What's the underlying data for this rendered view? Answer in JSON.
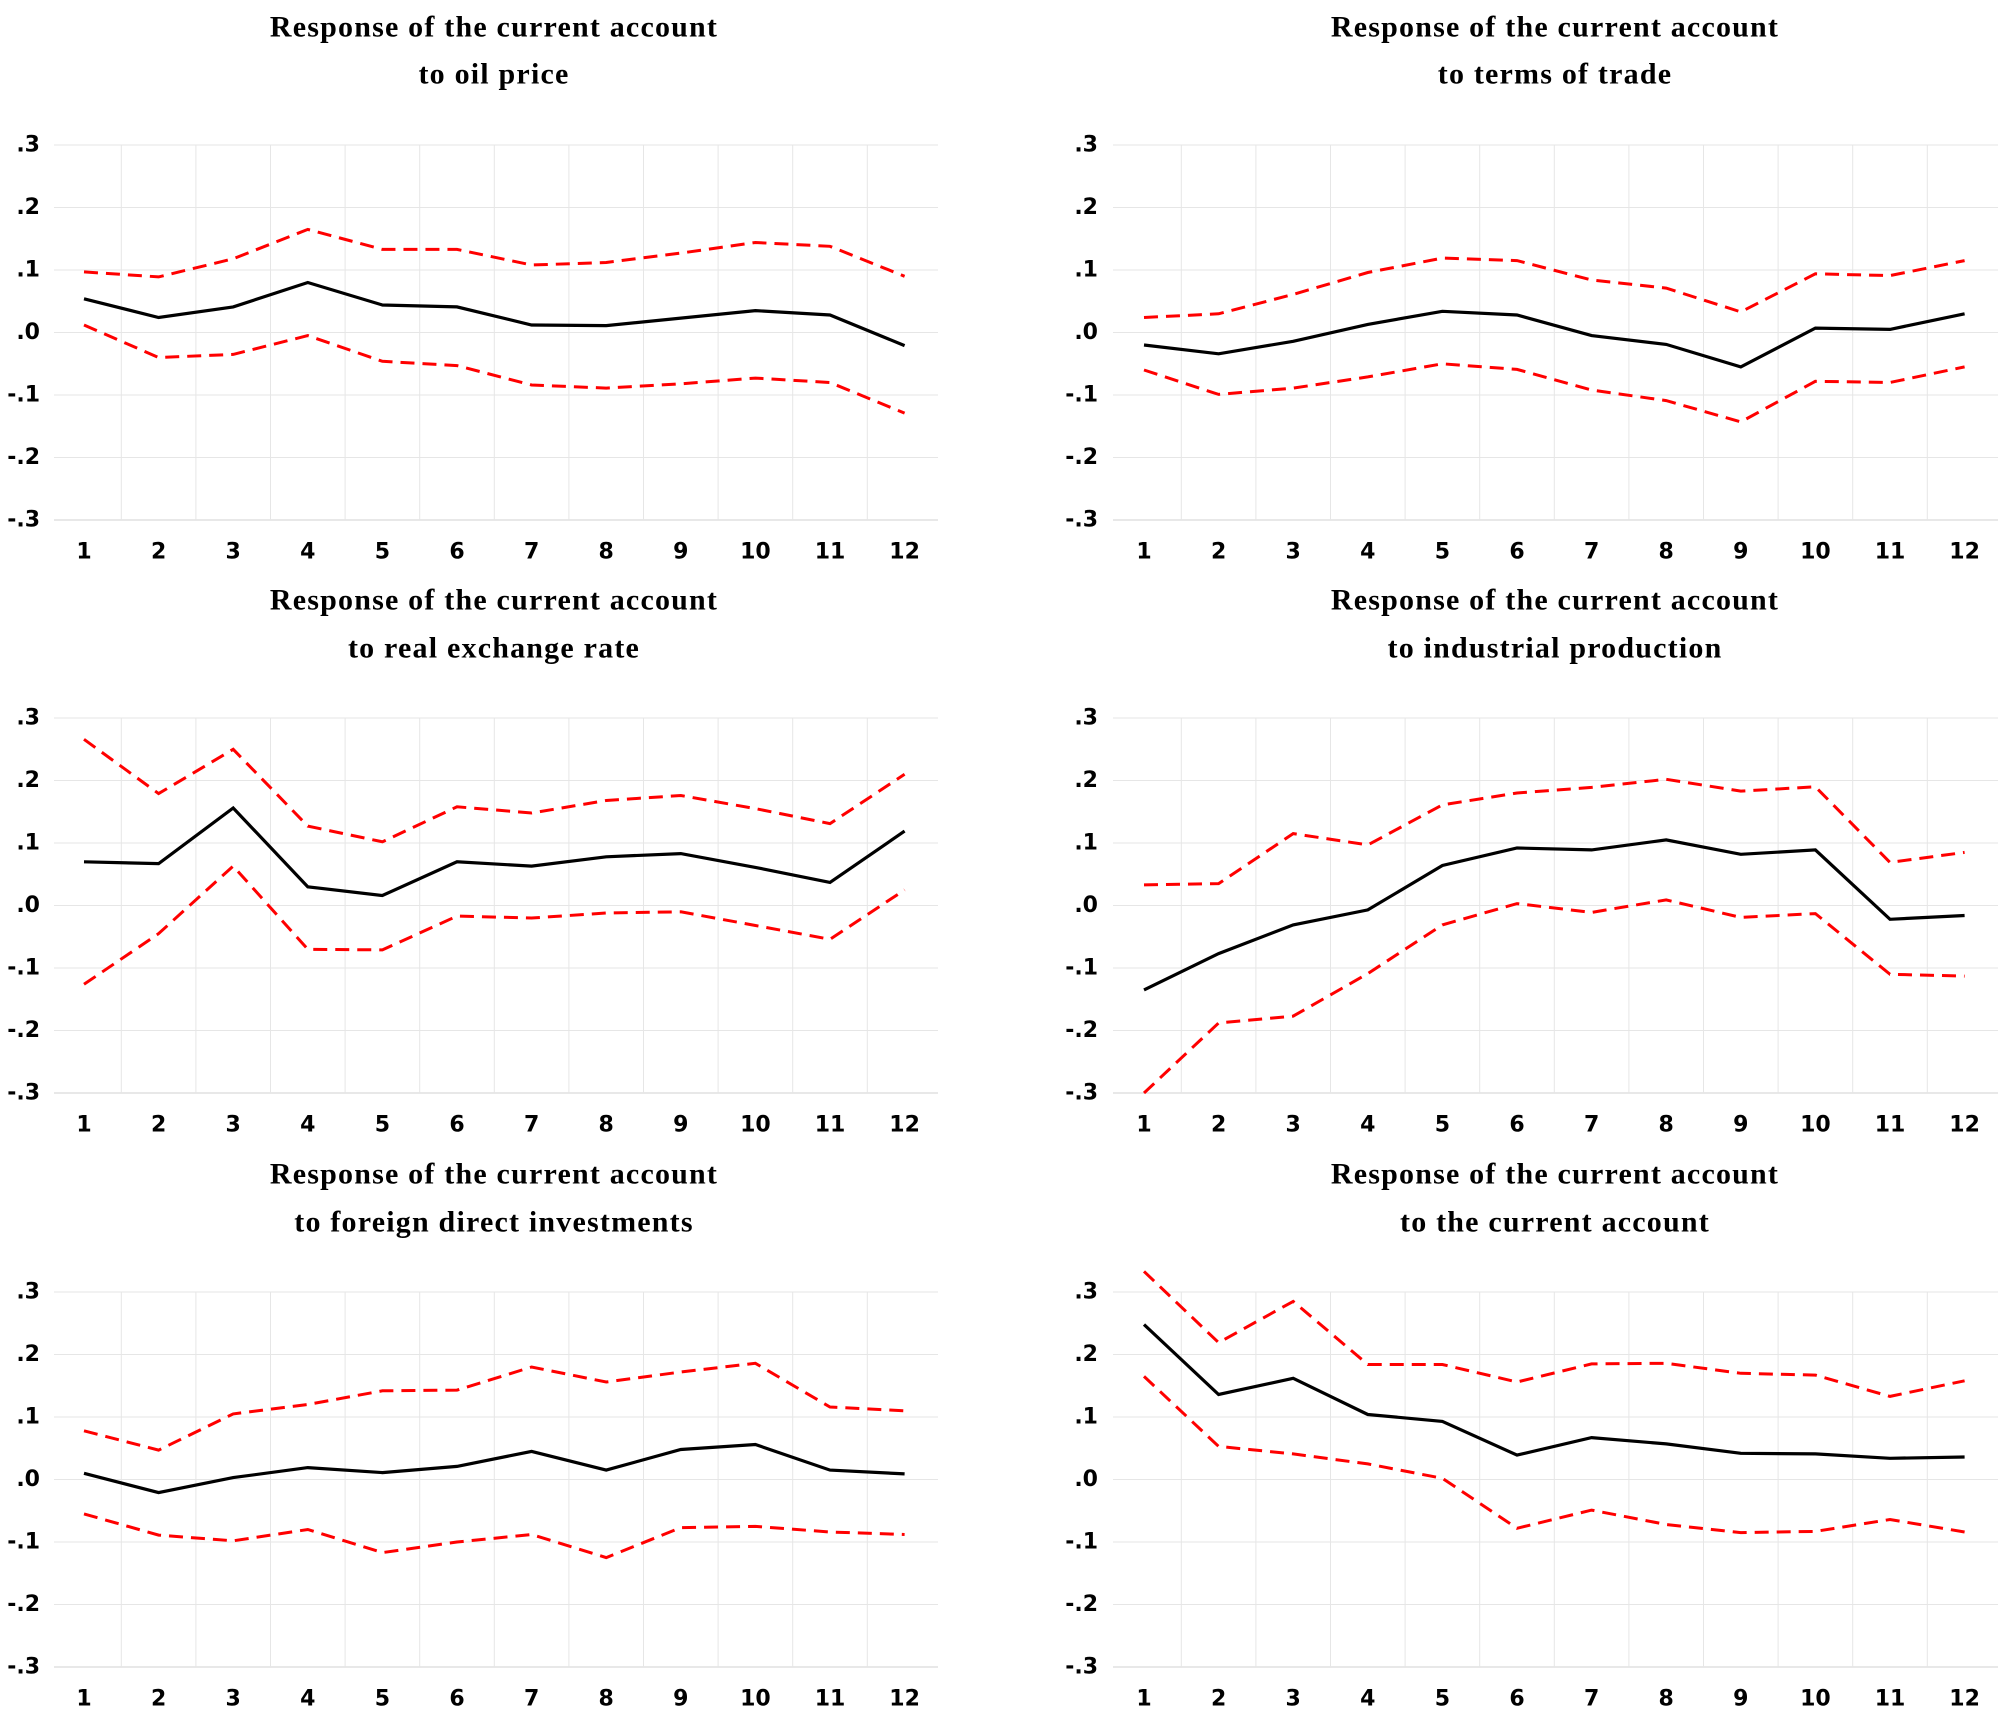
{
  "figure": {
    "colors": {
      "response": "#000000",
      "confidence_band": "#ff0000",
      "grid": "#e6e6e6"
    },
    "legend": "none"
  },
  "chart_data": [
    {
      "type": "line",
      "title": [
        "Response of the current account",
        "to oil price"
      ],
      "x": [
        1,
        2,
        3,
        4,
        5,
        6,
        7,
        8,
        9,
        10,
        11,
        12
      ],
      "xtick_labels": [
        "1",
        "2",
        "3",
        "4",
        "5",
        "6",
        "7",
        "8",
        "9",
        "10",
        "11",
        "12"
      ],
      "ylim": [
        -0.3,
        0.3
      ],
      "ytick_labels": [
        ".3",
        ".2",
        ".1",
        ".0",
        "-.1",
        "-.2",
        "-.3"
      ],
      "series": [
        {
          "name": "response",
          "style": "solid",
          "color": "#000000",
          "values": [
            0.054,
            0.024,
            0.041,
            0.08,
            0.044,
            0.041,
            0.012,
            0.011,
            0.023,
            0.035,
            0.028,
            -0.021
          ]
        },
        {
          "name": "upper_bound",
          "style": "dashed",
          "color": "#ff0000",
          "values": [
            0.097,
            0.089,
            0.118,
            0.165,
            0.133,
            0.133,
            0.108,
            0.112,
            0.127,
            0.144,
            0.138,
            0.09
          ]
        },
        {
          "name": "lower_bound",
          "style": "dashed",
          "color": "#ff0000",
          "values": [
            0.012,
            -0.04,
            -0.035,
            -0.005,
            -0.046,
            -0.053,
            -0.084,
            -0.089,
            -0.082,
            -0.073,
            -0.08,
            -0.129
          ]
        }
      ]
    },
    {
      "type": "line",
      "title": [
        "Response of the current account",
        "to terms of trade"
      ],
      "x": [
        1,
        2,
        3,
        4,
        5,
        6,
        7,
        8,
        9,
        10,
        11,
        12
      ],
      "xtick_labels": [
        "1",
        "2",
        "3",
        "4",
        "5",
        "6",
        "7",
        "8",
        "9",
        "10",
        "11",
        "12"
      ],
      "ylim": [
        -0.3,
        0.3
      ],
      "ytick_labels": [
        ".3",
        ".2",
        ".1",
        ".0",
        "-.1",
        "-.2",
        "-.3"
      ],
      "series": [
        {
          "name": "response",
          "style": "solid",
          "color": "#000000",
          "values": [
            -0.02,
            -0.034,
            -0.014,
            0.013,
            0.034,
            0.028,
            -0.005,
            -0.019,
            -0.055,
            0.007,
            0.005,
            0.03
          ]
        },
        {
          "name": "upper_bound",
          "style": "dashed",
          "color": "#ff0000",
          "values": [
            0.024,
            0.03,
            0.061,
            0.096,
            0.119,
            0.115,
            0.084,
            0.071,
            0.033,
            0.094,
            0.091,
            0.115
          ]
        },
        {
          "name": "lower_bound",
          "style": "dashed",
          "color": "#ff0000",
          "values": [
            -0.06,
            -0.099,
            -0.089,
            -0.071,
            -0.05,
            -0.059,
            -0.092,
            -0.109,
            -0.143,
            -0.078,
            -0.08,
            -0.055
          ]
        }
      ]
    },
    {
      "type": "line",
      "title": [
        "Response of the current account",
        "to real exchange rate"
      ],
      "x": [
        1,
        2,
        3,
        4,
        5,
        6,
        7,
        8,
        9,
        10,
        11,
        12
      ],
      "xtick_labels": [
        "1",
        "2",
        "3",
        "4",
        "5",
        "6",
        "7",
        "8",
        "9",
        "10",
        "11",
        "12"
      ],
      "ylim": [
        -0.3,
        0.3
      ],
      "ytick_labels": [
        ".3",
        ".2",
        ".1",
        ".0",
        "-.1",
        "-.2",
        "-.3"
      ],
      "series": [
        {
          "name": "response",
          "style": "solid",
          "color": "#000000",
          "values": [
            0.07,
            0.067,
            0.156,
            0.03,
            0.016,
            0.07,
            0.063,
            0.078,
            0.083,
            0.061,
            0.037,
            0.119
          ]
        },
        {
          "name": "upper_bound",
          "style": "dashed",
          "color": "#ff0000",
          "values": [
            0.266,
            0.179,
            0.25,
            0.127,
            0.102,
            0.158,
            0.148,
            0.168,
            0.176,
            0.155,
            0.131,
            0.21
          ]
        },
        {
          "name": "lower_bound",
          "style": "dashed",
          "color": "#ff0000",
          "values": [
            -0.126,
            -0.045,
            0.063,
            -0.07,
            -0.071,
            -0.017,
            -0.02,
            -0.012,
            -0.01,
            -0.032,
            -0.054,
            0.025
          ]
        }
      ]
    },
    {
      "type": "line",
      "title": [
        "Response of the current account",
        "to industrial production"
      ],
      "x": [
        1,
        2,
        3,
        4,
        5,
        6,
        7,
        8,
        9,
        10,
        11,
        12
      ],
      "xtick_labels": [
        "1",
        "2",
        "3",
        "4",
        "5",
        "6",
        "7",
        "8",
        "9",
        "10",
        "11",
        "12"
      ],
      "ylim": [
        -0.3,
        0.3
      ],
      "ytick_labels": [
        ".3",
        ".2",
        ".1",
        ".0",
        "-.1",
        "-.2",
        "-.3"
      ],
      "series": [
        {
          "name": "response",
          "style": "solid",
          "color": "#000000",
          "values": [
            -0.135,
            -0.077,
            -0.031,
            -0.007,
            0.064,
            0.092,
            0.089,
            0.105,
            0.082,
            0.089,
            -0.022,
            -0.016
          ]
        },
        {
          "name": "upper_bound",
          "style": "dashed",
          "color": "#ff0000",
          "values": [
            0.033,
            0.035,
            0.115,
            0.097,
            0.161,
            0.18,
            0.189,
            0.202,
            0.183,
            0.19,
            0.069,
            0.085
          ]
        },
        {
          "name": "lower_bound",
          "style": "dashed",
          "color": "#ff0000",
          "values": [
            -0.3,
            -0.188,
            -0.177,
            -0.109,
            -0.031,
            0.003,
            -0.011,
            0.009,
            -0.019,
            -0.013,
            -0.11,
            -0.113
          ]
        }
      ]
    },
    {
      "type": "line",
      "title": [
        "Response of the current account",
        "to foreign direct investments"
      ],
      "x": [
        1,
        2,
        3,
        4,
        5,
        6,
        7,
        8,
        9,
        10,
        11,
        12
      ],
      "xtick_labels": [
        "1",
        "2",
        "3",
        "4",
        "5",
        "6",
        "7",
        "8",
        "9",
        "10",
        "11",
        "12"
      ],
      "ylim": [
        -0.3,
        0.3
      ],
      "ytick_labels": [
        ".3",
        ".2",
        ".1",
        ".0",
        "-.1",
        "-.2",
        "-.3"
      ],
      "series": [
        {
          "name": "response",
          "style": "solid",
          "color": "#000000",
          "values": [
            0.01,
            -0.021,
            0.003,
            0.019,
            0.011,
            0.021,
            0.045,
            0.015,
            0.048,
            0.056,
            0.015,
            0.009
          ]
        },
        {
          "name": "upper_bound",
          "style": "dashed",
          "color": "#ff0000",
          "values": [
            0.078,
            0.047,
            0.105,
            0.12,
            0.142,
            0.143,
            0.18,
            0.156,
            0.172,
            0.186,
            0.116,
            0.11
          ]
        },
        {
          "name": "lower_bound",
          "style": "dashed",
          "color": "#ff0000",
          "values": [
            -0.055,
            -0.089,
            -0.098,
            -0.08,
            -0.117,
            -0.1,
            -0.088,
            -0.125,
            -0.077,
            -0.075,
            -0.084,
            -0.088
          ]
        }
      ]
    },
    {
      "type": "line",
      "title": [
        "Response of the current account",
        "to the current account"
      ],
      "x": [
        1,
        2,
        3,
        4,
        5,
        6,
        7,
        8,
        9,
        10,
        11,
        12
      ],
      "xtick_labels": [
        "1",
        "2",
        "3",
        "4",
        "5",
        "6",
        "7",
        "8",
        "9",
        "10",
        "11",
        "12"
      ],
      "ylim": [
        -0.3,
        0.3
      ],
      "ytick_labels": [
        ".3",
        ".2",
        ".1",
        ".0",
        "-.1",
        "-.2",
        "-.3"
      ],
      "series": [
        {
          "name": "response",
          "style": "solid",
          "color": "#000000",
          "values": [
            0.248,
            0.136,
            0.162,
            0.104,
            0.093,
            0.039,
            0.067,
            0.057,
            0.042,
            0.041,
            0.034,
            0.036
          ]
        },
        {
          "name": "upper_bound",
          "style": "dashed",
          "color": "#ff0000",
          "values": [
            0.333,
            0.219,
            0.285,
            0.184,
            0.184,
            0.156,
            0.185,
            0.186,
            0.17,
            0.167,
            0.133,
            0.158
          ]
        },
        {
          "name": "lower_bound",
          "style": "dashed",
          "color": "#ff0000",
          "values": [
            0.165,
            0.053,
            0.041,
            0.025,
            0.002,
            -0.078,
            -0.049,
            -0.072,
            -0.085,
            -0.083,
            -0.064,
            -0.084
          ]
        }
      ]
    }
  ]
}
